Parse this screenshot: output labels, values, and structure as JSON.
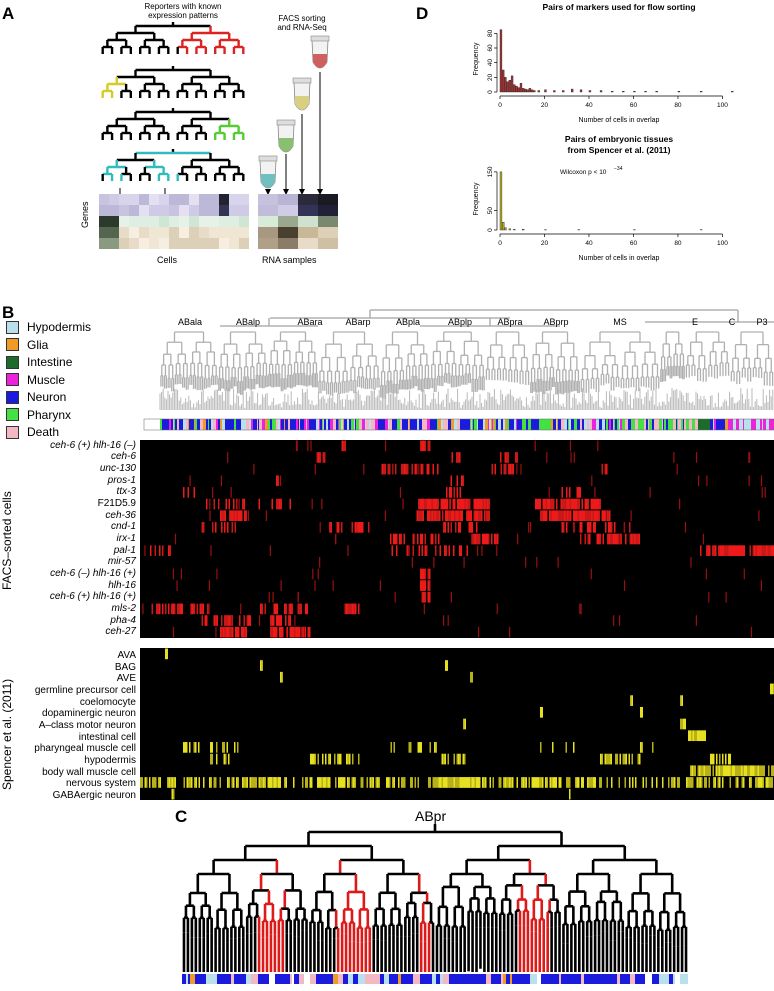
{
  "panel_a": {
    "letter": "A",
    "reporters_label": "Reporters with known\nexpression patterns",
    "facs_label": "FACS sorting\nand RNA-Seq",
    "genes_label": "Genes",
    "cells_label": "Cells",
    "rna_label": "RNA samples",
    "colors": {
      "red": "#dd2222",
      "yellow": "#d4cc22",
      "green": "#55cc33",
      "cyan": "#33bbbb"
    }
  },
  "panel_d": {
    "letter": "D",
    "chart_data": [
      {
        "type": "bar",
        "title": "Pairs of markers used for flow sorting",
        "xlabel": "Number of cells in overlap",
        "ylabel": "Frequency",
        "xticks": [
          0,
          20,
          40,
          60,
          80,
          100
        ],
        "yticks": [
          0,
          20,
          40,
          60,
          80
        ],
        "xlim": [
          0,
          107
        ],
        "ylim": [
          0,
          90
        ],
        "color": "#a83232",
        "x": [
          0,
          1,
          2,
          3,
          4,
          5,
          6,
          7,
          8,
          9,
          10,
          11,
          12,
          13,
          14,
          15,
          17,
          20,
          24,
          28,
          32,
          36,
          40,
          45,
          50,
          55,
          60,
          65,
          70,
          80,
          90,
          104
        ],
        "values": [
          85,
          30,
          20,
          14,
          16,
          22,
          10,
          8,
          6,
          12,
          5,
          4,
          3,
          5,
          3,
          2,
          2,
          3,
          2,
          2,
          4,
          3,
          2,
          2,
          1,
          1,
          1,
          1,
          1,
          1,
          1,
          1
        ]
      },
      {
        "type": "bar",
        "title": "Pairs of embryonic tissues\nfrom Spencer et al. (2011)",
        "annotation": "Wilcoxon p < 10",
        "annotation_exp": "−34",
        "xlabel": "Number of cells in overlap",
        "ylabel": "Frequency",
        "xticks": [
          0,
          20,
          40,
          60,
          80,
          100
        ],
        "yticks": [
          0,
          50,
          150
        ],
        "xlim": [
          0,
          107
        ],
        "ylim": [
          0,
          160
        ],
        "color": "#b8b022",
        "x": [
          0,
          1,
          2,
          4,
          6,
          10,
          20,
          35,
          60,
          90
        ],
        "values": [
          150,
          20,
          6,
          3,
          2,
          2,
          1,
          1,
          1,
          1
        ]
      }
    ]
  },
  "panel_b": {
    "letter": "B",
    "legend": [
      {
        "label": "Hypodermis",
        "color": "#b9e0ec"
      },
      {
        "label": "Glia",
        "color": "#f09a28"
      },
      {
        "label": "Intestine",
        "color": "#1d6b2a"
      },
      {
        "label": "Muscle",
        "color": "#ee22dd"
      },
      {
        "label": "Neuron",
        "color": "#1b1bdd"
      },
      {
        "label": "Pharynx",
        "color": "#44e044"
      },
      {
        "label": "Death",
        "color": "#f4b8c4"
      }
    ],
    "lineages": [
      "ABala",
      "ABalp",
      "ABara",
      "ABarp",
      "ABpla",
      "ABplp",
      "ABpra",
      "ABprp",
      "MS",
      "E",
      "C",
      "P3"
    ],
    "facs_axis_label": "FACS–sorted cells",
    "spencer_axis_label": "Spencer et al. (2011)",
    "facs_rows": [
      {
        "name": "ceh-6 (+) hlh-16 (–)",
        "italic": true
      },
      {
        "name": "ceh-6",
        "italic": true
      },
      {
        "name": "unc-130",
        "italic": true
      },
      {
        "name": "pros-1",
        "italic": true
      },
      {
        "name": "ttx-3",
        "italic": true
      },
      {
        "name": "F21D5.9",
        "italic": false
      },
      {
        "name": "ceh-36",
        "italic": true
      },
      {
        "name": "cnd-1",
        "italic": true
      },
      {
        "name": "irx-1",
        "italic": true
      },
      {
        "name": "pal-1",
        "italic": true
      },
      {
        "name": "mir-57",
        "italic": true
      },
      {
        "name": "ceh-6 (–) hlh-16 (+)",
        "italic": true
      },
      {
        "name": "hlh-16",
        "italic": true
      },
      {
        "name": "ceh-6 (+) hlh-16 (+)",
        "italic": true
      },
      {
        "name": "mls-2",
        "italic": true
      },
      {
        "name": "pha-4",
        "italic": true
      },
      {
        "name": "ceh-27",
        "italic": true
      }
    ],
    "spencer_rows": [
      "AVA",
      "BAG",
      "AVE",
      "germline precursor cell",
      "coelomocyte",
      "dopaminergic neuron",
      "A–class motor neuron",
      "intestinal cell",
      "pharyngeal muscle cell",
      "hypodermis",
      "body wall muscle cell",
      "nervous system",
      "GABAergic neuron"
    ]
  },
  "panel_c": {
    "letter": "C",
    "title": "ABpr"
  }
}
